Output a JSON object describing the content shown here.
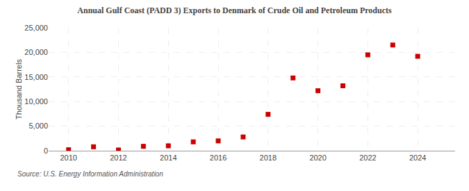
{
  "chart_data": {
    "type": "scatter",
    "title": "Annual Gulf Coast (PADD 3) Exports to Denmark of Crude Oil and Petroleum Products",
    "ylabel": "Thousand Barrels",
    "annotations": [
      "Source: U.S. Energy Information Administration"
    ],
    "x": [
      2010,
      2011,
      2012,
      2013,
      2014,
      2015,
      2016,
      2017,
      2018,
      2019,
      2020,
      2021,
      2022,
      2023,
      2024
    ],
    "values": [
      200,
      800,
      150,
      900,
      1000,
      1800,
      2000,
      2800,
      7400,
      14800,
      12200,
      13200,
      19500,
      21500,
      19200
    ],
    "color": "#cc0000",
    "marker": "square",
    "xlim": [
      2009.2,
      2025.5
    ],
    "xticks": [
      2010,
      2012,
      2014,
      2016,
      2018,
      2020,
      2022,
      2024
    ],
    "ylim": [
      0,
      25000
    ],
    "yticks": [
      0,
      {
        "value": 5000,
        "label": "5,000"
      },
      {
        "value": 10000,
        "label": "10,000"
      },
      {
        "value": 15000,
        "label": "15,000"
      },
      {
        "value": 20000,
        "label": "20,000"
      },
      {
        "value": 25000,
        "label": "25,000"
      }
    ],
    "grid": true
  }
}
